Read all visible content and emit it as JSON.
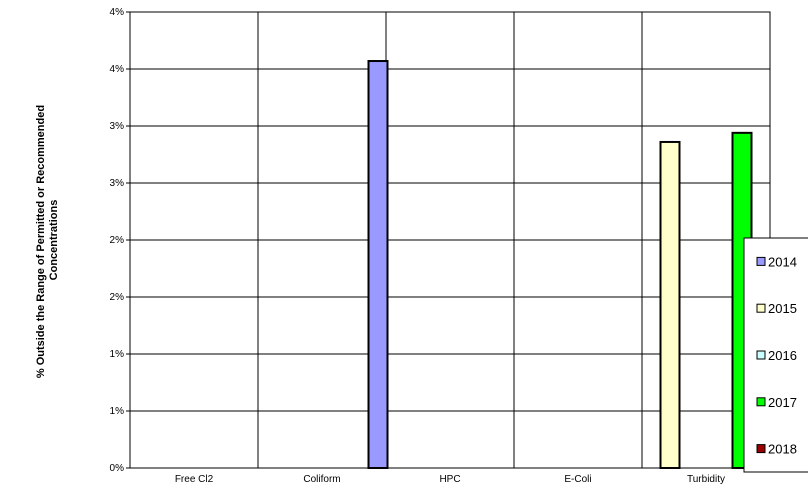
{
  "chart_data": {
    "type": "bar",
    "title": "",
    "xlabel": "",
    "ylabel_lines": [
      "% Outside the Range of Permitted or Recommended",
      "Concentrations"
    ],
    "categories": [
      "Free Cl2",
      "Coliform",
      "HPC",
      "E-Coli",
      "Turbidity"
    ],
    "y_tick_labels": [
      "0%",
      "1%",
      "1%",
      "2%",
      "2%",
      "3%",
      "3%",
      "4%",
      "4%"
    ],
    "ylim": [
      0,
      4
    ],
    "grid": true,
    "legend_position": "right",
    "series": [
      {
        "name": "2014",
        "color": "#9999ff",
        "values": [
          0,
          0,
          3.57,
          0,
          0
        ]
      },
      {
        "name": "2015",
        "color": "#ffffcc",
        "values": [
          0,
          0,
          0,
          0,
          2.86
        ]
      },
      {
        "name": "2016",
        "color": "#ccffff",
        "values": [
          0,
          0,
          0,
          0,
          0
        ]
      },
      {
        "name": "2017",
        "color": "#00ff00",
        "values": [
          0,
          0,
          0,
          0,
          2.94
        ]
      },
      {
        "name": "2018",
        "color": "#990000",
        "values": [
          0,
          0,
          0,
          0,
          0
        ]
      }
    ]
  }
}
